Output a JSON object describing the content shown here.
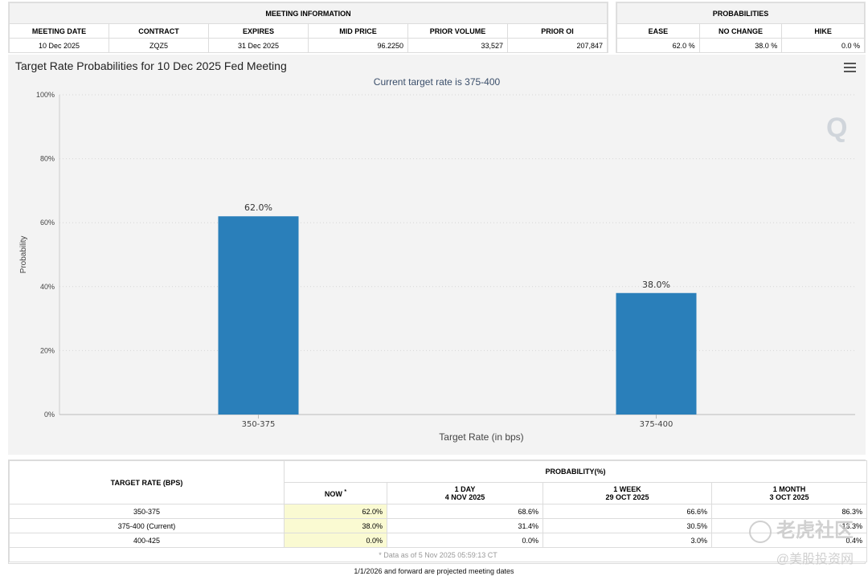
{
  "meeting_info": {
    "title": "MEETING INFORMATION",
    "headers": [
      "MEETING DATE",
      "CONTRACT",
      "EXPIRES",
      "MID PRICE",
      "PRIOR VOLUME",
      "PRIOR OI"
    ],
    "row": [
      "10 Dec 2025",
      "ZQZ5",
      "31 Dec 2025",
      "96.2250",
      "33,527",
      "207,847"
    ]
  },
  "probabilities": {
    "title": "PROBABILITIES",
    "headers": [
      "EASE",
      "NO CHANGE",
      "HIKE"
    ],
    "row": [
      "62.0 %",
      "38.0 %",
      "0.0 %"
    ]
  },
  "chart": {
    "title": "Target Rate Probabilities for 10 Dec 2025 Fed Meeting",
    "subtitle": "Current target rate is 375-400"
  },
  "chart_data": {
    "type": "bar",
    "title": "Target Rate Probabilities for 10 Dec 2025 Fed Meeting",
    "subtitle": "Current target rate is 375-400",
    "categories": [
      "350-375",
      "375-400"
    ],
    "values": [
      62.0,
      38.0
    ],
    "data_labels": [
      "62.0%",
      "38.0%"
    ],
    "xlabel": "Target Rate (in bps)",
    "ylabel": "Probability",
    "ylim": [
      0,
      100
    ],
    "yticks": [
      "0%",
      "20%",
      "40%",
      "60%",
      "80%",
      "100%"
    ],
    "bar_color": "#2a7fba",
    "grid": true
  },
  "bottom_table": {
    "target_header": "TARGET RATE (BPS)",
    "prob_header": "PROBABILITY(%)",
    "col_now": "NOW",
    "col_now_mark": "*",
    "col_1day_a": "1 DAY",
    "col_1day_b": "4 NOV 2025",
    "col_1week_a": "1 WEEK",
    "col_1week_b": "29 OCT 2025",
    "col_1month_a": "1 MONTH",
    "col_1month_b": "3 OCT 2025",
    "rows": [
      {
        "rate": "350-375",
        "now": "62.0%",
        "d1": "68.6%",
        "w1": "66.6%",
        "m1": "86.3%"
      },
      {
        "rate": "375-400 (Current)",
        "now": "38.0%",
        "d1": "31.4%",
        "w1": "30.5%",
        "m1": "13.3%"
      },
      {
        "rate": "400-425",
        "now": "0.0%",
        "d1": "0.0%",
        "w1": "3.0%",
        "m1": "0.4%"
      }
    ],
    "as_of": "* Data as of 5 Nov 2025 05:59:13 CT"
  },
  "footer_note": "1/1/2026 and forward are projected meeting dates",
  "watermark": {
    "line1": "老虎社区",
    "line2": "@美股投资网"
  }
}
